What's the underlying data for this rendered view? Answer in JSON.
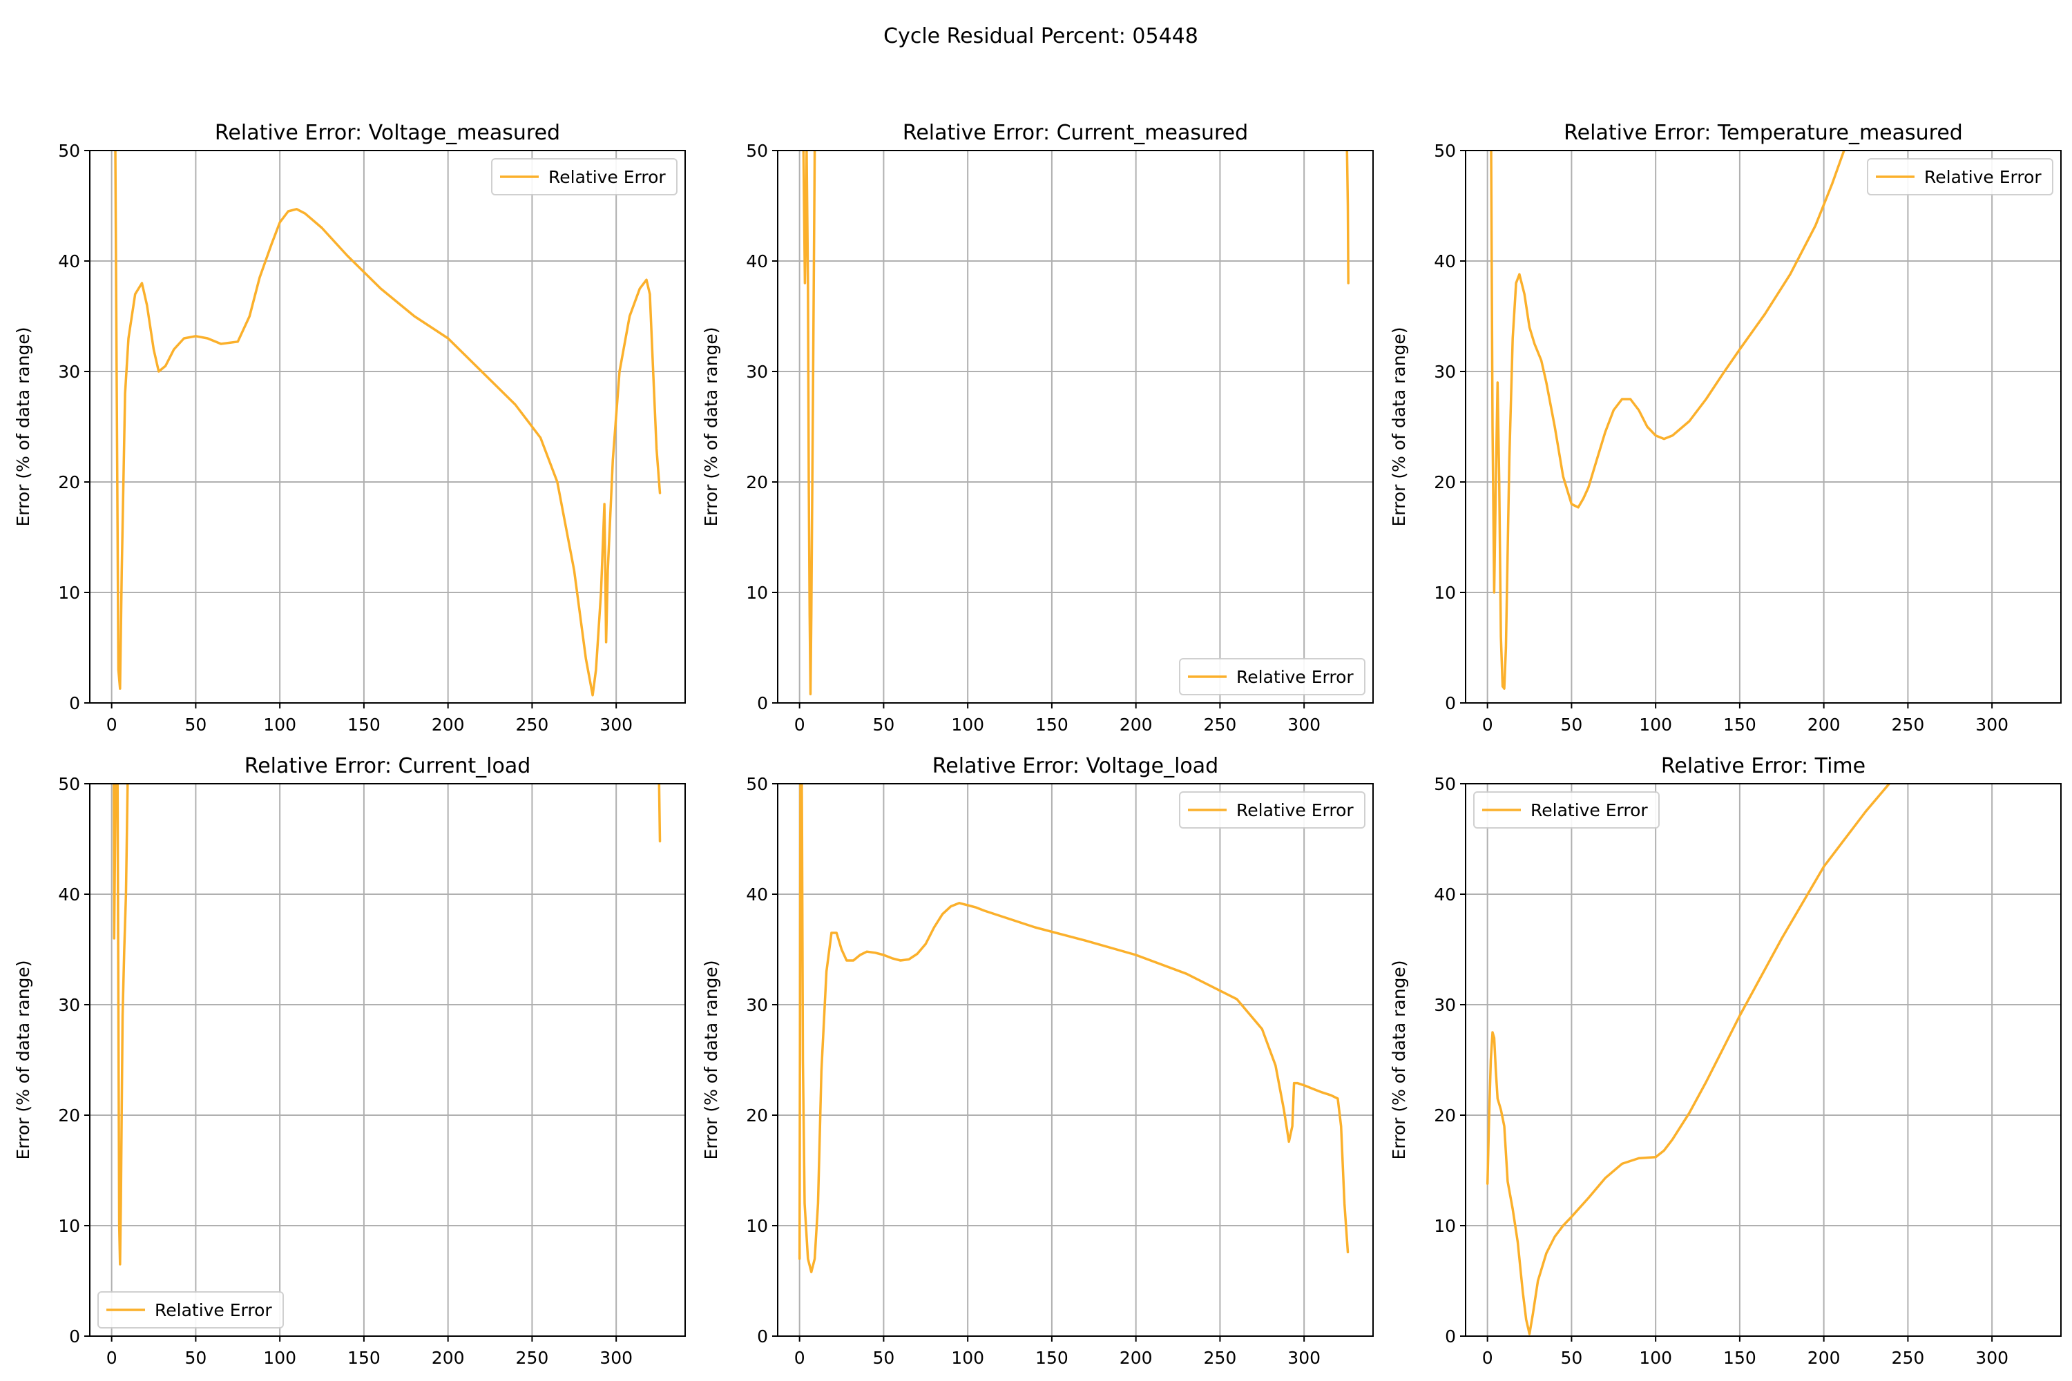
{
  "figure": {
    "suptitle": "Cycle Residual Percent: 05448"
  },
  "style": {
    "line_color": "#fbb02b",
    "grid_color": "#b0b0b0"
  },
  "chart_data": [
    {
      "type": "line",
      "title": "Relative Error: Voltage_measured",
      "ylabel": "Error (% of data range)",
      "xlabel": "",
      "xlim": [
        -13,
        341
      ],
      "ylim": [
        0,
        50
      ],
      "xticks": [
        0,
        50,
        100,
        150,
        200,
        250,
        300
      ],
      "yticks": [
        0,
        10,
        20,
        30,
        40,
        50
      ],
      "grid": true,
      "legend": {
        "position": "top-right",
        "entries": [
          "Relative Error"
        ]
      },
      "series": [
        {
          "name": "Relative Error",
          "x": [
            1.5,
            2.2,
            4,
            5,
            6,
            8,
            10,
            14,
            18,
            21,
            25,
            28,
            32,
            37,
            43,
            50,
            57,
            65,
            75,
            82,
            88,
            95,
            100,
            105,
            110,
            115,
            125,
            140,
            160,
            180,
            200,
            220,
            240,
            255,
            265,
            275,
            282,
            286,
            288,
            291,
            293,
            294,
            295,
            298,
            302,
            308,
            314,
            318,
            320,
            322,
            324,
            326
          ],
          "y": [
            60,
            50,
            3,
            1.3,
            12,
            28,
            33,
            37,
            38,
            36,
            32,
            30,
            30.5,
            32,
            33,
            33.2,
            33,
            32.5,
            32.7,
            35,
            38.5,
            41.5,
            43.5,
            44.5,
            44.7,
            44.3,
            43,
            40.5,
            37.5,
            35,
            33,
            30,
            27,
            24,
            20,
            12,
            4,
            0.7,
            3,
            10,
            18,
            5.5,
            12,
            22,
            30,
            35,
            37.5,
            38.3,
            37,
            30,
            23,
            19
          ]
        }
      ]
    },
    {
      "type": "line",
      "title": "Relative Error: Current_measured",
      "ylabel": "Error (% of data range)",
      "xlabel": "",
      "xlim": [
        -13,
        341
      ],
      "ylim": [
        0,
        50
      ],
      "xticks": [
        0,
        50,
        100,
        150,
        200,
        250,
        300
      ],
      "yticks": [
        0,
        10,
        20,
        30,
        40,
        50
      ],
      "grid": true,
      "legend": {
        "position": "bottom-right",
        "entries": [
          "Relative Error"
        ]
      },
      "series": [
        {
          "name": "Relative Error",
          "x": [
            1.5,
            2.3,
            3.2,
            4.2,
            5,
            5.5,
            6,
            6.5,
            7,
            8,
            9,
            11,
            325,
            325.5,
            326,
            326.3
          ],
          "y": [
            70,
            50,
            38,
            50,
            38,
            20,
            8,
            0.8,
            8,
            28,
            50,
            70,
            70,
            50,
            45,
            38
          ]
        }
      ]
    },
    {
      "type": "line",
      "title": "Relative Error: Temperature_measured",
      "ylabel": "Error (% of data range)",
      "xlabel": "",
      "xlim": [
        -13,
        341
      ],
      "ylim": [
        0,
        50
      ],
      "xticks": [
        0,
        50,
        100,
        150,
        200,
        250,
        300
      ],
      "yticks": [
        0,
        10,
        20,
        30,
        40,
        50
      ],
      "grid": true,
      "legend": {
        "position": "top-right",
        "entries": [
          "Relative Error"
        ]
      },
      "series": [
        {
          "name": "Relative Error",
          "x": [
            1.5,
            2.2,
            3,
            4,
            5,
            6,
            7,
            8,
            9,
            10,
            11,
            13,
            15,
            17,
            19,
            22,
            25,
            28,
            32,
            35,
            40,
            45,
            50,
            54,
            57,
            60,
            65,
            70,
            75,
            80,
            85,
            90,
            95,
            100,
            105,
            110,
            120,
            130,
            140,
            150,
            165,
            180,
            195,
            205,
            212,
            215
          ],
          "y": [
            58,
            50,
            25,
            10,
            20,
            29,
            20,
            6,
            1.5,
            1.3,
            5,
            22,
            33,
            38,
            38.8,
            37,
            34,
            32.5,
            31,
            29,
            25,
            20.5,
            18,
            17.7,
            18.5,
            19.5,
            22,
            24.5,
            26.5,
            27.5,
            27.5,
            26.5,
            25,
            24.2,
            23.9,
            24.2,
            25.5,
            27.5,
            29.8,
            32,
            35.2,
            38.8,
            43.2,
            47,
            50,
            52
          ]
        }
      ]
    },
    {
      "type": "line",
      "title": "Relative Error: Current_load",
      "ylabel": "Error (% of data range)",
      "xlabel": "",
      "xlim": [
        -13,
        341
      ],
      "ylim": [
        0,
        50
      ],
      "xticks": [
        0,
        50,
        100,
        150,
        200,
        250,
        300
      ],
      "yticks": [
        0,
        10,
        20,
        30,
        40,
        50
      ],
      "grid": true,
      "legend": {
        "position": "bottom-left",
        "entries": [
          "Relative Error"
        ]
      },
      "series": [
        {
          "name": "Relative Error",
          "x": [
            1,
            1.5,
            2.3,
            3,
            3.5,
            4,
            4.5,
            5,
            5.5,
            6.5,
            7.5,
            8.5,
            9.5,
            10,
            10.5,
            325,
            325.5,
            326
          ],
          "y": [
            70,
            36,
            50,
            48,
            50,
            30,
            10,
            6.5,
            12,
            29,
            35,
            40,
            50,
            55,
            60,
            55,
            50,
            44.8
          ]
        }
      ]
    },
    {
      "type": "line",
      "title": "Relative Error: Voltage_load",
      "ylabel": "Error (% of data range)",
      "xlabel": "",
      "xlim": [
        -13,
        341
      ],
      "ylim": [
        0,
        50
      ],
      "xticks": [
        0,
        50,
        100,
        150,
        200,
        250,
        300
      ],
      "yticks": [
        0,
        10,
        20,
        30,
        40,
        50
      ],
      "grid": true,
      "legend": {
        "position": "top-right",
        "entries": [
          "Relative Error"
        ]
      },
      "series": [
        {
          "name": "Relative Error",
          "x": [
            0,
            0.5,
            1,
            1.5,
            2,
            3,
            5,
            7,
            9,
            11,
            13,
            16,
            19,
            22,
            25,
            28,
            32,
            36,
            40,
            45,
            50,
            55,
            60,
            65,
            70,
            75,
            80,
            85,
            90,
            95,
            100,
            105,
            110,
            120,
            140,
            170,
            200,
            230,
            260,
            275,
            283,
            288,
            291,
            293,
            294,
            296,
            300,
            305,
            310,
            316,
            320,
            322,
            324,
            326
          ],
          "y": [
            7,
            50,
            60,
            45,
            25,
            12,
            7,
            5.8,
            7,
            12,
            24,
            33,
            36.5,
            36.5,
            35,
            34,
            34,
            34.5,
            34.8,
            34.7,
            34.5,
            34.2,
            34.0,
            34.1,
            34.6,
            35.5,
            37.0,
            38.2,
            38.9,
            39.2,
            39.0,
            38.8,
            38.5,
            38.0,
            37.0,
            35.8,
            34.5,
            32.8,
            30.5,
            27.8,
            24.5,
            20.5,
            17.6,
            19,
            22.9,
            22.9,
            22.7,
            22.4,
            22.1,
            21.8,
            21.5,
            19,
            12,
            7.6
          ]
        }
      ]
    },
    {
      "type": "line",
      "title": "Relative Error: Time",
      "ylabel": "Error (% of data range)",
      "xlabel": "",
      "xlim": [
        -13,
        341
      ],
      "ylim": [
        0,
        50
      ],
      "xticks": [
        0,
        50,
        100,
        150,
        200,
        250,
        300
      ],
      "yticks": [
        0,
        10,
        20,
        30,
        40,
        50
      ],
      "grid": true,
      "legend": {
        "position": "top-left",
        "entries": [
          "Relative Error"
        ]
      },
      "series": [
        {
          "name": "Relative Error",
          "x": [
            0,
            1,
            2,
            3,
            4,
            5,
            6,
            8,
            10,
            12,
            15,
            18,
            21,
            23,
            25,
            27,
            30,
            35,
            40,
            45,
            50,
            60,
            70,
            80,
            90,
            100,
            105,
            110,
            120,
            130,
            140,
            150,
            175,
            200,
            225,
            250,
            260
          ],
          "y": [
            13.8,
            20,
            25,
            27.5,
            27,
            24,
            21.5,
            20.5,
            19,
            14,
            11.5,
            8.5,
            4,
            1.5,
            0.2,
            2,
            5,
            7.5,
            9,
            10,
            10.8,
            12.5,
            14.3,
            15.6,
            16.1,
            16.2,
            16.8,
            17.8,
            20.2,
            23,
            26,
            29,
            36,
            42.5,
            47.5,
            52,
            54
          ]
        }
      ]
    }
  ]
}
